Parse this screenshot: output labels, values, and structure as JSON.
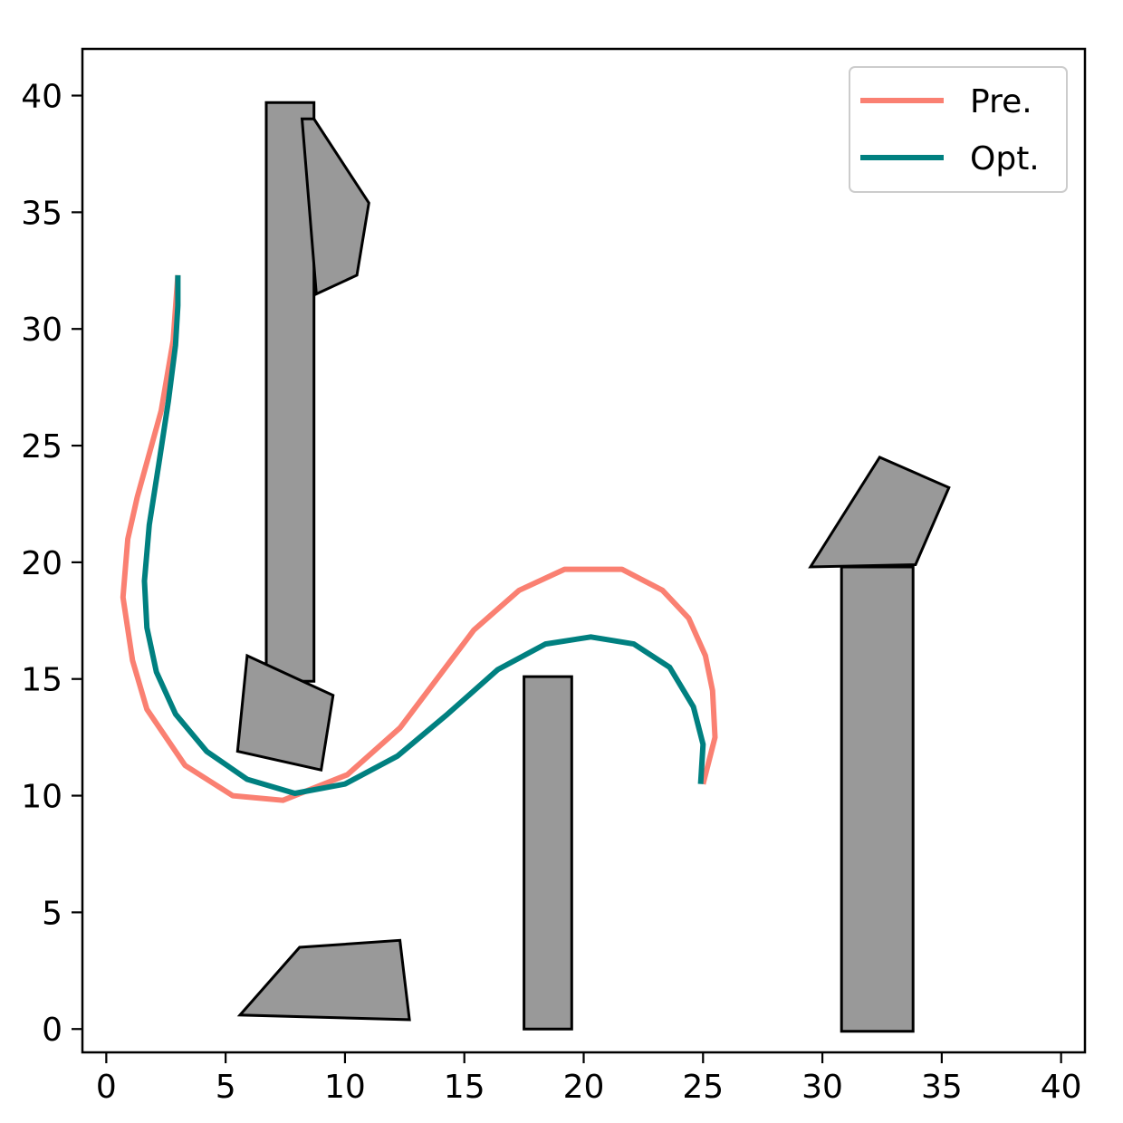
{
  "chart_data": {
    "type": "line",
    "title": "",
    "xlabel": "",
    "ylabel": "",
    "xlim": [
      -1,
      41
    ],
    "ylim": [
      -1,
      42
    ],
    "grid": false,
    "legend_position": "top-right",
    "x_ticks": [
      "0",
      "5",
      "10",
      "15",
      "20",
      "25",
      "30",
      "35",
      "40"
    ],
    "y_ticks": [
      "0",
      "5",
      "10",
      "15",
      "20",
      "25",
      "30",
      "35",
      "40"
    ],
    "x_tick_values": [
      0,
      5,
      10,
      15,
      20,
      25,
      30,
      35,
      40
    ],
    "y_tick_values": [
      0,
      5,
      10,
      15,
      20,
      25,
      30,
      35,
      40
    ],
    "series": [
      {
        "name": "Pre.",
        "color": "#fa8072",
        "points": [
          [
            3.0,
            32.3
          ],
          [
            2.8,
            29.5
          ],
          [
            2.3,
            26.5
          ],
          [
            1.3,
            22.8
          ],
          [
            0.9,
            21.0
          ],
          [
            0.7,
            18.5
          ],
          [
            1.1,
            15.8
          ],
          [
            1.7,
            13.7
          ],
          [
            3.3,
            11.3
          ],
          [
            5.3,
            10.0
          ],
          [
            7.4,
            9.8
          ],
          [
            10.1,
            10.9
          ],
          [
            12.3,
            12.9
          ],
          [
            15.4,
            17.1
          ],
          [
            17.3,
            18.8
          ],
          [
            19.2,
            19.7
          ],
          [
            21.6,
            19.7
          ],
          [
            23.3,
            18.8
          ],
          [
            24.4,
            17.6
          ],
          [
            25.1,
            16.0
          ],
          [
            25.4,
            14.5
          ],
          [
            25.5,
            12.5
          ],
          [
            25.0,
            10.5
          ]
        ]
      },
      {
        "name": "Opt.",
        "color": "#008080",
        "points": [
          [
            3.0,
            32.3
          ],
          [
            3.0,
            31.0
          ],
          [
            2.9,
            29.3
          ],
          [
            2.6,
            26.9
          ],
          [
            2.2,
            24.2
          ],
          [
            1.8,
            21.6
          ],
          [
            1.6,
            19.2
          ],
          [
            1.7,
            17.2
          ],
          [
            2.1,
            15.3
          ],
          [
            2.9,
            13.5
          ],
          [
            4.2,
            11.9
          ],
          [
            5.9,
            10.7
          ],
          [
            7.9,
            10.1
          ],
          [
            10.0,
            10.5
          ],
          [
            12.2,
            11.7
          ],
          [
            14.3,
            13.5
          ],
          [
            16.4,
            15.4
          ],
          [
            18.4,
            16.5
          ],
          [
            20.3,
            16.8
          ],
          [
            22.1,
            16.5
          ],
          [
            23.6,
            15.5
          ],
          [
            24.6,
            13.8
          ],
          [
            25.0,
            12.2
          ],
          [
            24.9,
            10.5
          ]
        ]
      }
    ],
    "obstacles": [
      {
        "color": "#999999",
        "points": [
          [
            6.7,
            39.7
          ],
          [
            8.7,
            39.7
          ],
          [
            8.7,
            14.9
          ],
          [
            6.7,
            14.9
          ]
        ]
      },
      {
        "color": "#999999",
        "points": [
          [
            8.2,
            39.0
          ],
          [
            8.7,
            39.0
          ],
          [
            11.0,
            35.4
          ],
          [
            10.5,
            32.3
          ],
          [
            8.8,
            31.5
          ]
        ]
      },
      {
        "color": "#999999",
        "points": [
          [
            5.9,
            16.0
          ],
          [
            9.5,
            14.3
          ],
          [
            9.0,
            11.1
          ],
          [
            5.5,
            11.9
          ]
        ]
      },
      {
        "color": "#999999",
        "points": [
          [
            5.6,
            0.6
          ],
          [
            8.1,
            3.5
          ],
          [
            12.3,
            3.8
          ],
          [
            12.7,
            0.4
          ]
        ]
      },
      {
        "color": "#999999",
        "points": [
          [
            17.5,
            15.1
          ],
          [
            19.5,
            15.1
          ],
          [
            19.5,
            0.0
          ],
          [
            17.5,
            0.0
          ]
        ]
      },
      {
        "color": "#999999",
        "points": [
          [
            30.8,
            19.8
          ],
          [
            33.8,
            19.8
          ],
          [
            33.8,
            -0.1
          ],
          [
            30.8,
            -0.1
          ]
        ]
      },
      {
        "color": "#999999",
        "points": [
          [
            29.5,
            19.8
          ],
          [
            32.4,
            24.5
          ],
          [
            35.3,
            23.2
          ],
          [
            33.9,
            19.9
          ]
        ]
      }
    ]
  }
}
